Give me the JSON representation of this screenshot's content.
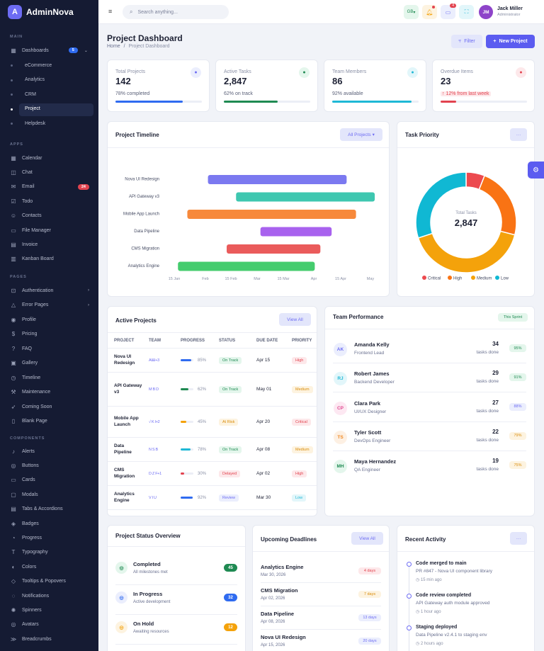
{
  "app": {
    "name": "AdminNova",
    "logo": "A"
  },
  "sidebar": {
    "sections": [
      "MAIN",
      "APPS",
      "PAGES",
      "COMPONENTS"
    ],
    "dashboards": {
      "label": "Dashboards",
      "badge": "5"
    },
    "subs": [
      "eCommerce",
      "Analytics",
      "CRM",
      "Project",
      "Helpdesk"
    ],
    "apps": [
      {
        "label": "Calendar",
        "icon": "calendar-icon"
      },
      {
        "label": "Chat",
        "icon": "chat-icon"
      },
      {
        "label": "Email",
        "icon": "email-icon",
        "badge": "24"
      },
      {
        "label": "Todo",
        "icon": "todo-icon"
      },
      {
        "label": "Contacts",
        "icon": "contacts-icon"
      },
      {
        "label": "File Manager",
        "icon": "folder-icon"
      },
      {
        "label": "Invoice",
        "icon": "invoice-icon"
      },
      {
        "label": "Kanban Board",
        "icon": "kanban-icon"
      }
    ],
    "pages": [
      {
        "label": "Authentication",
        "icon": "lock-icon",
        "chev": true
      },
      {
        "label": "Error Pages",
        "icon": "warning-icon",
        "chev": true
      },
      {
        "label": "Profile",
        "icon": "profile-icon"
      },
      {
        "label": "Pricing",
        "icon": "pricing-icon"
      },
      {
        "label": "FAQ",
        "icon": "question-icon"
      },
      {
        "label": "Gallery",
        "icon": "gallery-icon"
      },
      {
        "label": "Timeline",
        "icon": "timeline-icon"
      },
      {
        "label": "Maintenance",
        "icon": "wrench-icon"
      },
      {
        "label": "Coming Soon",
        "icon": "rocket-icon"
      },
      {
        "label": "Blank Page",
        "icon": "page-icon"
      }
    ],
    "components": [
      {
        "label": "Alerts",
        "icon": "bell-icon"
      },
      {
        "label": "Buttons",
        "icon": "button-icon"
      },
      {
        "label": "Cards",
        "icon": "card-icon"
      },
      {
        "label": "Modals",
        "icon": "modal-icon"
      },
      {
        "label": "Tabs & Accordions",
        "icon": "tabs-icon"
      },
      {
        "label": "Badges",
        "icon": "badge-icon"
      },
      {
        "label": "Progress",
        "icon": "progress-icon"
      },
      {
        "label": "Typography",
        "icon": "typography-icon"
      },
      {
        "label": "Colors",
        "icon": "palette-icon"
      },
      {
        "label": "Tooltips & Popovers",
        "icon": "tooltip-icon"
      },
      {
        "label": "Notifications",
        "icon": "notification-icon"
      },
      {
        "label": "Spinners",
        "icon": "spinner-icon"
      },
      {
        "label": "Avatars",
        "icon": "avatar-icon"
      },
      {
        "label": "Breadcrumbs",
        "icon": "breadcrumb-icon"
      }
    ]
  },
  "topbar": {
    "search_placeholder": "Search anything...",
    "lang": "GB",
    "notif_count": "4",
    "user_name": "Jack Miller",
    "user_role": "Administrator",
    "user_initials": "JM"
  },
  "page": {
    "title": "Project Dashboard",
    "crumb_home": "Home",
    "crumb_sep": "/",
    "crumb_current": "Project Dashboard",
    "filter_label": "Filter",
    "new_label": "New Project"
  },
  "stats": [
    {
      "label": "Total Projects",
      "value": "142",
      "sub": "78% completed",
      "progress": 0.78,
      "color": "#2f6bf0",
      "iconbg": "#ebeefd",
      "iconc": "#6d6cf3"
    },
    {
      "label": "Active Tasks",
      "value": "2,847",
      "sub": "62% on track",
      "progress": 0.62,
      "color": "#1f8a52",
      "iconbg": "#e4f6ec",
      "iconc": "#1f8a52"
    },
    {
      "label": "Team Members",
      "value": "86",
      "sub": "92% available",
      "progress": 0.92,
      "color": "#1fb8d6",
      "iconbg": "#e2f6fa",
      "iconc": "#1fb8d6"
    },
    {
      "label": "Overdue Items",
      "value": "23",
      "sub": "↑ 12% from last week",
      "progress": 0.18,
      "color": "#e2434f",
      "iconbg": "#fde8ea",
      "iconc": "#e2434f"
    }
  ],
  "timeline": {
    "title": "Project Timeline",
    "filter": "All Projects",
    "tasks": [
      "Nova UI Redesign",
      "API Gateway v3",
      "Mobile App Launch",
      "Data Pipeline",
      "CMS Migration",
      "Analytics Engine"
    ],
    "ticks": [
      "15 Jan",
      "Feb",
      "15 Feb",
      "Mar",
      "15 Mar",
      "Apr",
      "15 Apr",
      "May"
    ]
  },
  "priority": {
    "title": "Task Priority",
    "center_label": "Total Tasks",
    "center_value": "2,847",
    "legend": [
      "Critical",
      "High",
      "Medium",
      "Low"
    ]
  },
  "chart_data": [
    {
      "type": "bar",
      "title": "Project Timeline",
      "categories": [
        "Nova UI Redesign",
        "API Gateway v3",
        "Mobile App Launch",
        "Data Pipeline",
        "CMS Migration",
        "Analytics Engine"
      ],
      "x_ticks": [
        "15 Jan",
        "Feb",
        "15 Feb",
        "Mar",
        "15 Mar",
        "Apr",
        "15 Apr",
        "May"
      ],
      "ranges": [
        [
          "2026-02-05",
          "2026-04-20"
        ],
        [
          "2026-02-20",
          "2026-05-05"
        ],
        [
          "2026-01-25",
          "2026-04-25"
        ],
        [
          "2026-03-05",
          "2026-04-12"
        ],
        [
          "2026-02-15",
          "2026-04-06"
        ],
        [
          "2026-01-20",
          "2026-04-03"
        ]
      ],
      "colors": [
        "#7b79f0",
        "#3ec7b0",
        "#f7893b",
        "#a862ee",
        "#ea5b5b",
        "#45cc6e"
      ]
    },
    {
      "type": "pie",
      "title": "Task Priority",
      "categories": [
        "Critical",
        "High",
        "Medium",
        "Low"
      ],
      "values": [
        6,
        23,
        41,
        30
      ],
      "colors": [
        "#ec4a4f",
        "#f97314",
        "#f4a20b",
        "#10b8d3"
      ]
    }
  ],
  "active_projects": {
    "title": "Active Projects",
    "view_all": "View All",
    "headers": [
      "PROJECT",
      "TEAM",
      "PROGRESS",
      "STATUS",
      "DUE DATE",
      "PRIORITY"
    ],
    "rows": [
      {
        "name": "Nova UI Redesign",
        "team": "AI&I+3",
        "progress": "85%",
        "pct": 0.85,
        "pcolor": "#2f6bf0",
        "status": "On Track",
        "due": "Apr 15",
        "priority": "High"
      },
      {
        "name": "API Gateway v3",
        "team": "M B D",
        "progress": "62%",
        "pct": 0.62,
        "pcolor": "#1f8a52",
        "status": "On Track",
        "due": "May 01",
        "priority": "Medium"
      },
      {
        "name": "Mobile App Launch",
        "team": "√ K I+2",
        "progress": "45%",
        "pct": 0.45,
        "pcolor": "#f4a20b",
        "status": "At Risk",
        "due": "Apr 20",
        "priority": "Critical"
      },
      {
        "name": "Data Pipeline",
        "team": "N S B",
        "progress": "78%",
        "pct": 0.78,
        "pcolor": "#1fb8d6",
        "status": "On Track",
        "due": "Apr 08",
        "priority": "Medium"
      },
      {
        "name": "CMS Migration",
        "team": "D Z F+1",
        "progress": "30%",
        "pct": 0.3,
        "pcolor": "#e2434f",
        "status": "Delayed",
        "due": "Apr 02",
        "priority": "High"
      },
      {
        "name": "Analytics Engine",
        "team": "V I U",
        "progress": "92%",
        "pct": 0.92,
        "pcolor": "#2f6bf0",
        "status": "Review",
        "due": "Mar 30",
        "priority": "Low"
      }
    ]
  },
  "team": {
    "title": "Team Performance",
    "badge": "This Sprint",
    "tasks_label": "tasks done",
    "members": [
      {
        "initials": "AK",
        "name": "Amanda Kelly",
        "role": "Frontend Lead",
        "count": "34",
        "pct": "95%",
        "bg": "#ebeefd",
        "c": "#6d6cf3",
        "pbg": "#e4f6ec",
        "pc": "#1f8a52"
      },
      {
        "initials": "RJ",
        "name": "Robert James",
        "role": "Backend Developer",
        "count": "29",
        "pct": "91%",
        "bg": "#e2f6fa",
        "c": "#1fb8d6",
        "pbg": "#e4f6ec",
        "pc": "#1f8a52"
      },
      {
        "initials": "CP",
        "name": "Clara Park",
        "role": "UI/UX Designer",
        "count": "27",
        "pct": "88%",
        "bg": "#fde8f2",
        "c": "#e04a91",
        "pbg": "#ebeefd",
        "pc": "#6d6cf3"
      },
      {
        "initials": "TS",
        "name": "Tyler Scott",
        "role": "DevOps Engineer",
        "count": "22",
        "pct": "79%",
        "bg": "#fdf0e3",
        "c": "#f08a24",
        "pbg": "#fdf3e0",
        "pc": "#d98c0a"
      },
      {
        "initials": "MH",
        "name": "Maya Hernandez",
        "role": "QA Engineer",
        "count": "19",
        "pct": "75%",
        "bg": "#e4f6ec",
        "c": "#1f8a52",
        "pbg": "#fdf3e0",
        "pc": "#d98c0a"
      }
    ]
  },
  "status_overview": {
    "title": "Project Status Overview",
    "items": [
      {
        "label": "Completed",
        "sub": "All milestones met",
        "count": "45",
        "bg": "#e4f6ec",
        "c": "#1f8a52"
      },
      {
        "label": "In Progress",
        "sub": "Active development",
        "count": "32",
        "bg": "#ebeefd",
        "c": "#2f6bf0"
      },
      {
        "label": "On Hold",
        "sub": "Awaiting resources",
        "count": "12",
        "bg": "#fdf3e0",
        "c": "#f4a20b"
      }
    ]
  },
  "deadlines": {
    "title": "Upcoming Deadlines",
    "view_all": "View All",
    "items": [
      {
        "name": "Analytics Engine",
        "date": "Mar 30, 2026",
        "days": "4 days",
        "bg": "#fde8ea",
        "c": "#e2434f"
      },
      {
        "name": "CMS Migration",
        "date": "Apr 02, 2026",
        "days": "7 days",
        "bg": "#fdf3e0",
        "c": "#d98c0a"
      },
      {
        "name": "Data Pipeline",
        "date": "Apr 08, 2026",
        "days": "13 days",
        "bg": "#ebeefd",
        "c": "#6d6cf3"
      },
      {
        "name": "Nova UI Redesign",
        "date": "Apr 15, 2026",
        "days": "20 days",
        "bg": "#ebeefd",
        "c": "#6d6cf3"
      }
    ]
  },
  "activity": {
    "title": "Recent Activity",
    "items": [
      {
        "title": "Code merged to main",
        "desc": "PR #847 - Nova UI component library",
        "time": "15 min ago"
      },
      {
        "title": "Code review completed",
        "desc": "API Gateway auth module approved",
        "time": "1 hour ago"
      },
      {
        "title": "Staging deployed",
        "desc": "Data Pipeline v2.4.1 to staging env",
        "time": "2 hours ago"
      }
    ]
  }
}
